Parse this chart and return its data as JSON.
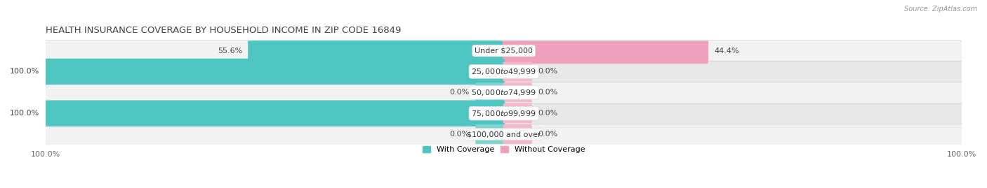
{
  "title": "HEALTH INSURANCE COVERAGE BY HOUSEHOLD INCOME IN ZIP CODE 16849",
  "source": "Source: ZipAtlas.com",
  "categories": [
    "Under $25,000",
    "$25,000 to $49,999",
    "$50,000 to $74,999",
    "$75,000 to $99,999",
    "$100,000 and over"
  ],
  "with_coverage": [
    55.6,
    100.0,
    0.0,
    100.0,
    0.0
  ],
  "without_coverage": [
    44.4,
    0.0,
    0.0,
    0.0,
    0.0
  ],
  "coverage_color": "#4EC5C1",
  "no_coverage_color": "#F0A0BC",
  "stub_coverage_color": "#7DD4D0",
  "stub_no_coverage_color": "#F4B8CC",
  "title_fontsize": 9.5,
  "label_fontsize": 8,
  "tick_fontsize": 8,
  "figsize": [
    14.06,
    2.69
  ],
  "dpi": 100,
  "xlim": [
    -100,
    100
  ],
  "stub_size": 6,
  "row_colors": [
    "#F2F2F2",
    "#E8E8E8"
  ]
}
